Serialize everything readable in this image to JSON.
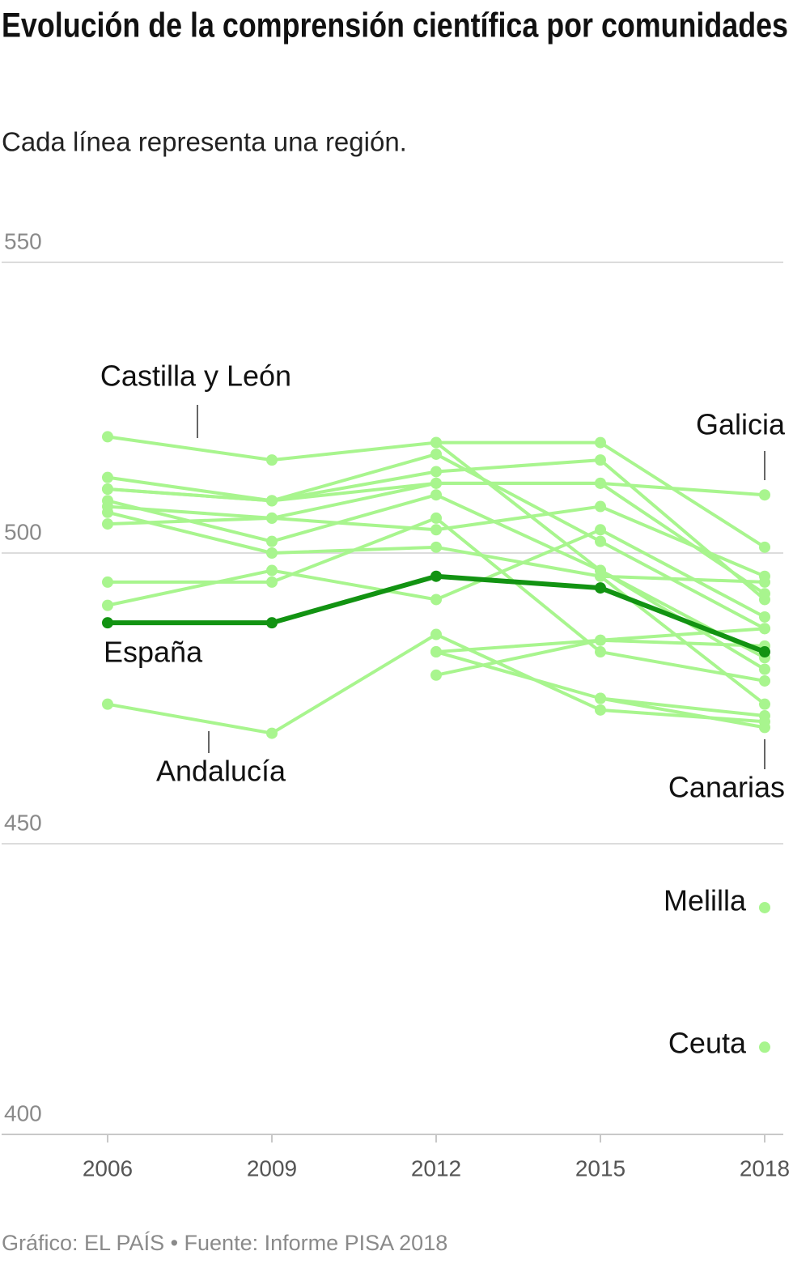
{
  "chart_data": {
    "type": "line",
    "title": "Evolución de la comprensión científica por comunidades",
    "subtitle": "Cada línea representa una región.",
    "source": "Gráfico: EL PAÍS • Fuente: Informe PISA 2018",
    "x": [
      2006,
      2009,
      2012,
      2015,
      2018
    ],
    "xlim": [
      2006,
      2018
    ],
    "xticks": [
      2006,
      2009,
      2012,
      2015,
      2018
    ],
    "ylim": [
      400,
      550
    ],
    "yticks": [
      400,
      450,
      500,
      550
    ],
    "grid": true,
    "series": [
      {
        "name": "Castilla y León",
        "color": "#a8f58e",
        "values": [
          520,
          516,
          519,
          519,
          501
        ]
      },
      {
        "name": "Galicia",
        "color": "#a8f58e",
        "values": [
          508,
          506,
          512,
          512,
          510
        ]
      },
      {
        "color": "#a8f58e",
        "values": [
          513,
          509,
          514,
          516,
          492
        ]
      },
      {
        "color": "#a8f58e",
        "values": [
          511,
          509,
          517,
          502,
          487
        ]
      },
      {
        "color": "#a8f58e",
        "values": [
          509,
          502,
          510,
          497,
          480
        ]
      },
      {
        "color": "#a8f58e",
        "values": [
          505,
          506,
          504,
          508,
          496
        ]
      },
      {
        "color": "#a8f58e",
        "values": [
          495,
          495,
          506,
          483,
          478
        ]
      },
      {
        "color": "#a8f58e",
        "values": [
          491,
          497,
          492,
          504,
          489
        ]
      },
      {
        "color": "#a8f58e",
        "values": [
          507,
          500,
          501,
          496,
          495
        ]
      },
      {
        "color": "#a8f58e",
        "values": [
          511,
          509,
          512,
          512,
          493
        ]
      },
      {
        "color": "#a8f58e",
        "values": [
          null,
          null,
          519,
          497,
          482
        ]
      },
      {
        "name": "Andalucía",
        "color": "#a8f58e",
        "values": [
          474,
          469,
          486,
          473,
          471
        ]
      },
      {
        "name": "Canarias",
        "color": "#a8f58e",
        "values": [
          null,
          null,
          null,
          475,
          470
        ]
      },
      {
        "color": "#a8f58e",
        "values": [
          null,
          null,
          483,
          485,
          484
        ]
      },
      {
        "color": "#a8f58e",
        "values": [
          null,
          null,
          479,
          485,
          487
        ]
      },
      {
        "color": "#a8f58e",
        "values": [
          null,
          null,
          483,
          475,
          472
        ]
      },
      {
        "color": "#a8f58e",
        "values": [
          null,
          null,
          null,
          496,
          474
        ]
      },
      {
        "name": "Melilla",
        "color": "#a8f58e",
        "values": [
          null,
          null,
          null,
          null,
          439
        ]
      },
      {
        "name": "Ceuta",
        "color": "#a8f58e",
        "values": [
          null,
          null,
          null,
          null,
          415
        ]
      },
      {
        "name": "España",
        "color": "#129312",
        "values": [
          488,
          488,
          496,
          494,
          483
        ]
      }
    ]
  }
}
